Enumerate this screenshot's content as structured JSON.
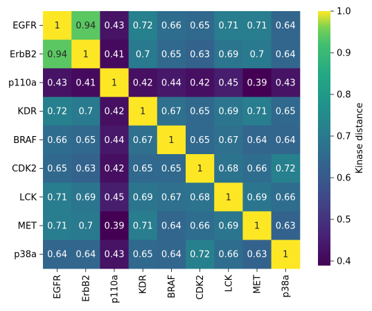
{
  "chart_data": {
    "type": "heatmap",
    "title": "",
    "xlabel": "",
    "ylabel": "",
    "x_labels": [
      "EGFR",
      "ErbB2",
      "p110a",
      "KDR",
      "BRAF",
      "CDK2",
      "LCK",
      "MET",
      "p38a"
    ],
    "y_labels": [
      "EGFR",
      "ErbB2",
      "p110a",
      "KDR",
      "BRAF",
      "CDK2",
      "LCK",
      "MET",
      "p38a"
    ],
    "values": [
      [
        1,
        0.94,
        0.43,
        0.72,
        0.66,
        0.65,
        0.71,
        0.71,
        0.64
      ],
      [
        0.94,
        1,
        0.41,
        0.7,
        0.65,
        0.63,
        0.69,
        0.7,
        0.64
      ],
      [
        0.43,
        0.41,
        1,
        0.42,
        0.44,
        0.42,
        0.45,
        0.39,
        0.43
      ],
      [
        0.72,
        0.7,
        0.42,
        1,
        0.67,
        0.65,
        0.69,
        0.71,
        0.65
      ],
      [
        0.66,
        0.65,
        0.44,
        0.67,
        1,
        0.65,
        0.67,
        0.64,
        0.64
      ],
      [
        0.65,
        0.63,
        0.42,
        0.65,
        0.65,
        1,
        0.68,
        0.66,
        0.72
      ],
      [
        0.71,
        0.69,
        0.45,
        0.69,
        0.67,
        0.68,
        1,
        0.69,
        0.66
      ],
      [
        0.71,
        0.7,
        0.39,
        0.71,
        0.64,
        0.66,
        0.69,
        1,
        0.63
      ],
      [
        0.64,
        0.64,
        0.43,
        0.65,
        0.64,
        0.72,
        0.66,
        0.63,
        1
      ]
    ],
    "annotations": true,
    "colormap": "viridis",
    "vmin": 0.39,
    "vmax": 1.0,
    "colorbar": {
      "label": "Kinase distance",
      "ticks": [
        0.4,
        0.5,
        0.6,
        0.7,
        0.8,
        0.9,
        1.0
      ],
      "tick_labels": [
        "0.4",
        "0.5",
        "0.6",
        "0.7",
        "0.8",
        "0.9",
        "1.0"
      ]
    }
  }
}
